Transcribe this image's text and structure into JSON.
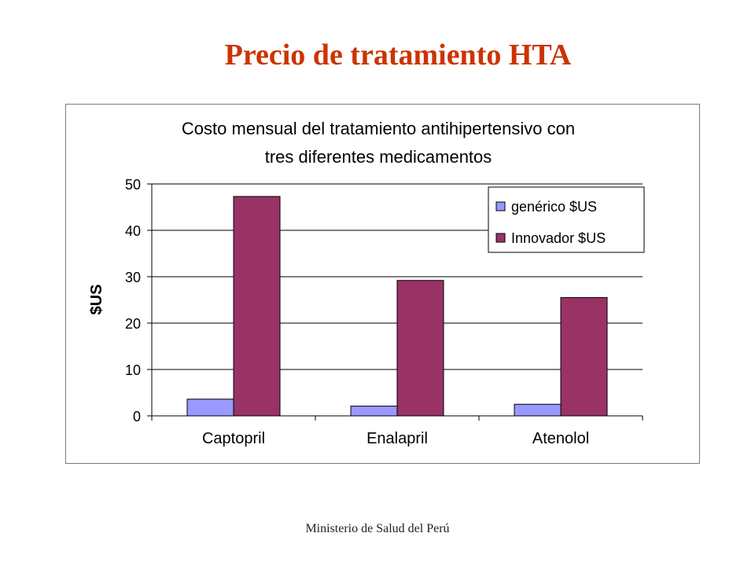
{
  "slide": {
    "title": "Precio de tratamiento HTA",
    "footer": "Ministerio de Salud del Perú"
  },
  "colors": {
    "title": "#cc3300",
    "generic": "#9999ff",
    "innovator": "#993366"
  },
  "chart_data": {
    "type": "bar",
    "title_lines": [
      "Costo mensual del tratamiento antihipertensivo con",
      "tres diferentes medicamentos"
    ],
    "xlabel": "",
    "ylabel": "$US",
    "ylim": [
      0,
      50
    ],
    "yticks": [
      "0",
      "10",
      "20",
      "30",
      "40",
      "50"
    ],
    "grid": true,
    "legend_position": "top-right",
    "categories": [
      "Captopril",
      "Enalapril",
      "Atenolol"
    ],
    "series": [
      {
        "name": "genérico $US",
        "values": [
          3.6,
          2.1,
          2.5
        ]
      },
      {
        "name": "Innovador $US",
        "values": [
          47.3,
          29.2,
          25.5
        ]
      }
    ]
  }
}
